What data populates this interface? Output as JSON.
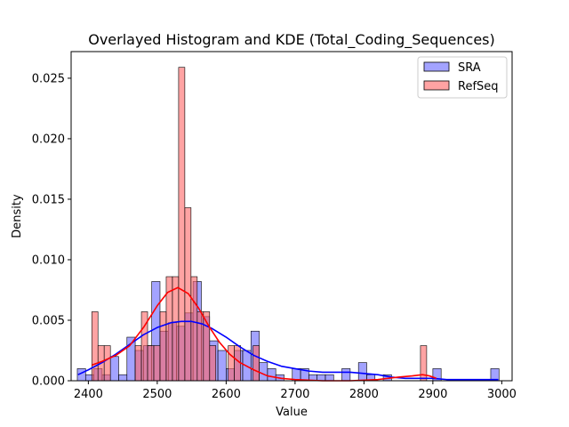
{
  "chart_data": {
    "type": "bar",
    "title": "Overlayed Histogram and KDE (Total_Coding_Sequences)",
    "xlabel": "Value",
    "ylabel": "Density",
    "xlim": [
      2375,
      3015
    ],
    "ylim": [
      0,
      0.0272
    ],
    "xticks": [
      2400,
      2500,
      2600,
      2700,
      2800,
      2900,
      3000
    ],
    "xtick_labels": [
      "2400",
      "2500",
      "2600",
      "2700",
      "2800",
      "2900",
      "3000"
    ],
    "yticks": [
      0,
      0.005,
      0.01,
      0.015,
      0.02,
      0.025
    ],
    "ytick_labels": [
      "0.000",
      "0.005",
      "0.010",
      "0.015",
      "0.020",
      "0.025"
    ],
    "grid": false,
    "legend_position": "top-right",
    "series": [
      {
        "name": "SRA",
        "color": "#0000ff",
        "bar_fill": "#6666ff",
        "bins": [
          [
            2384,
            2396,
            0.001
          ],
          [
            2396,
            2408,
            0.0005
          ],
          [
            2408,
            2420,
            0.001
          ],
          [
            2420,
            2432,
            0.0005
          ],
          [
            2432,
            2444,
            0.002
          ],
          [
            2444,
            2456,
            0.0005
          ],
          [
            2456,
            2468,
            0.0036
          ],
          [
            2468,
            2480,
            0.0025
          ],
          [
            2480,
            2492,
            0.0029
          ],
          [
            2492,
            2504,
            0.0082
          ],
          [
            2504,
            2516,
            0.0041
          ],
          [
            2516,
            2528,
            0.0048
          ],
          [
            2528,
            2540,
            0.0045
          ],
          [
            2540,
            2552,
            0.0056
          ],
          [
            2552,
            2564,
            0.0082
          ],
          [
            2564,
            2576,
            0.0053
          ],
          [
            2576,
            2588,
            0.0033
          ],
          [
            2588,
            2600,
            0.0025
          ],
          [
            2600,
            2612,
            0.001
          ],
          [
            2612,
            2624,
            0.0025
          ],
          [
            2624,
            2636,
            0.0025
          ],
          [
            2636,
            2648,
            0.0041
          ],
          [
            2648,
            2660,
            0.0015
          ],
          [
            2660,
            2672,
            0.001
          ],
          [
            2672,
            2684,
            0.0005
          ],
          [
            2696,
            2708,
            0.001
          ],
          [
            2708,
            2720,
            0.001
          ],
          [
            2720,
            2732,
            0.0005
          ],
          [
            2732,
            2744,
            0.0005
          ],
          [
            2744,
            2756,
            0.0005
          ],
          [
            2768,
            2780,
            0.001
          ],
          [
            2792,
            2804,
            0.0015
          ],
          [
            2804,
            2816,
            0.0005
          ],
          [
            2828,
            2840,
            0.0005
          ],
          [
            2900,
            2912,
            0.001
          ],
          [
            2984,
            2996,
            0.001
          ]
        ],
        "kde": [
          [
            2385,
            0.0005
          ],
          [
            2400,
            0.0009
          ],
          [
            2420,
            0.0015
          ],
          [
            2440,
            0.0022
          ],
          [
            2460,
            0.003
          ],
          [
            2480,
            0.0038
          ],
          [
            2500,
            0.0044
          ],
          [
            2520,
            0.0048
          ],
          [
            2535,
            0.0049
          ],
          [
            2550,
            0.0049
          ],
          [
            2565,
            0.0047
          ],
          [
            2580,
            0.0043
          ],
          [
            2600,
            0.0036
          ],
          [
            2620,
            0.0028
          ],
          [
            2640,
            0.0021
          ],
          [
            2660,
            0.0016
          ],
          [
            2680,
            0.0012
          ],
          [
            2700,
            0.001
          ],
          [
            2720,
            0.0008
          ],
          [
            2740,
            0.0007
          ],
          [
            2760,
            0.0007
          ],
          [
            2780,
            0.0007
          ],
          [
            2800,
            0.0006
          ],
          [
            2820,
            0.0005
          ],
          [
            2840,
            0.0003
          ],
          [
            2860,
            0.0002
          ],
          [
            2880,
            0.0002
          ],
          [
            2900,
            0.0002
          ],
          [
            2920,
            0.0001
          ],
          [
            2940,
            0.0001
          ],
          [
            2960,
            0.0001
          ],
          [
            2980,
            0.0001
          ],
          [
            2995,
            0.0001
          ]
        ]
      },
      {
        "name": "RefSeq",
        "color": "#ff0000",
        "bar_fill": "#ff6666",
        "bins": [
          [
            2405,
            2414,
            0.0057
          ],
          [
            2414,
            2423,
            0.0029
          ],
          [
            2423,
            2432,
            0.0029
          ],
          [
            2468,
            2477,
            0.0029
          ],
          [
            2477,
            2486,
            0.0057
          ],
          [
            2486,
            2495,
            0.0029
          ],
          [
            2495,
            2504,
            0.0029
          ],
          [
            2504,
            2513,
            0.0057
          ],
          [
            2513,
            2522,
            0.0086
          ],
          [
            2522,
            2531,
            0.0086
          ],
          [
            2531,
            2540,
            0.0259
          ],
          [
            2540,
            2549,
            0.0143
          ],
          [
            2549,
            2558,
            0.0086
          ],
          [
            2558,
            2567,
            0.0057
          ],
          [
            2567,
            2576,
            0.0057
          ],
          [
            2576,
            2585,
            0.0029
          ],
          [
            2603,
            2612,
            0.0029
          ],
          [
            2612,
            2621,
            0.0029
          ],
          [
            2639,
            2648,
            0.0029
          ],
          [
            2882,
            2891,
            0.0029
          ]
        ],
        "kde": [
          [
            2405,
            0.0013
          ],
          [
            2420,
            0.0016
          ],
          [
            2440,
            0.0021
          ],
          [
            2460,
            0.0029
          ],
          [
            2480,
            0.0044
          ],
          [
            2500,
            0.0062
          ],
          [
            2515,
            0.0073
          ],
          [
            2530,
            0.0077
          ],
          [
            2545,
            0.0072
          ],
          [
            2560,
            0.006
          ],
          [
            2575,
            0.0045
          ],
          [
            2590,
            0.0032
          ],
          [
            2605,
            0.0022
          ],
          [
            2620,
            0.0015
          ],
          [
            2640,
            0.0009
          ],
          [
            2660,
            0.0004
          ],
          [
            2680,
            0.0002
          ],
          [
            2700,
            0.0001
          ],
          [
            2740,
            0.0
          ],
          [
            2780,
            0.0
          ],
          [
            2820,
            0.0001
          ],
          [
            2850,
            0.0003
          ],
          [
            2870,
            0.0004
          ],
          [
            2885,
            0.0005
          ],
          [
            2895,
            0.0004
          ],
          [
            2905,
            0.0002
          ]
        ]
      }
    ]
  }
}
